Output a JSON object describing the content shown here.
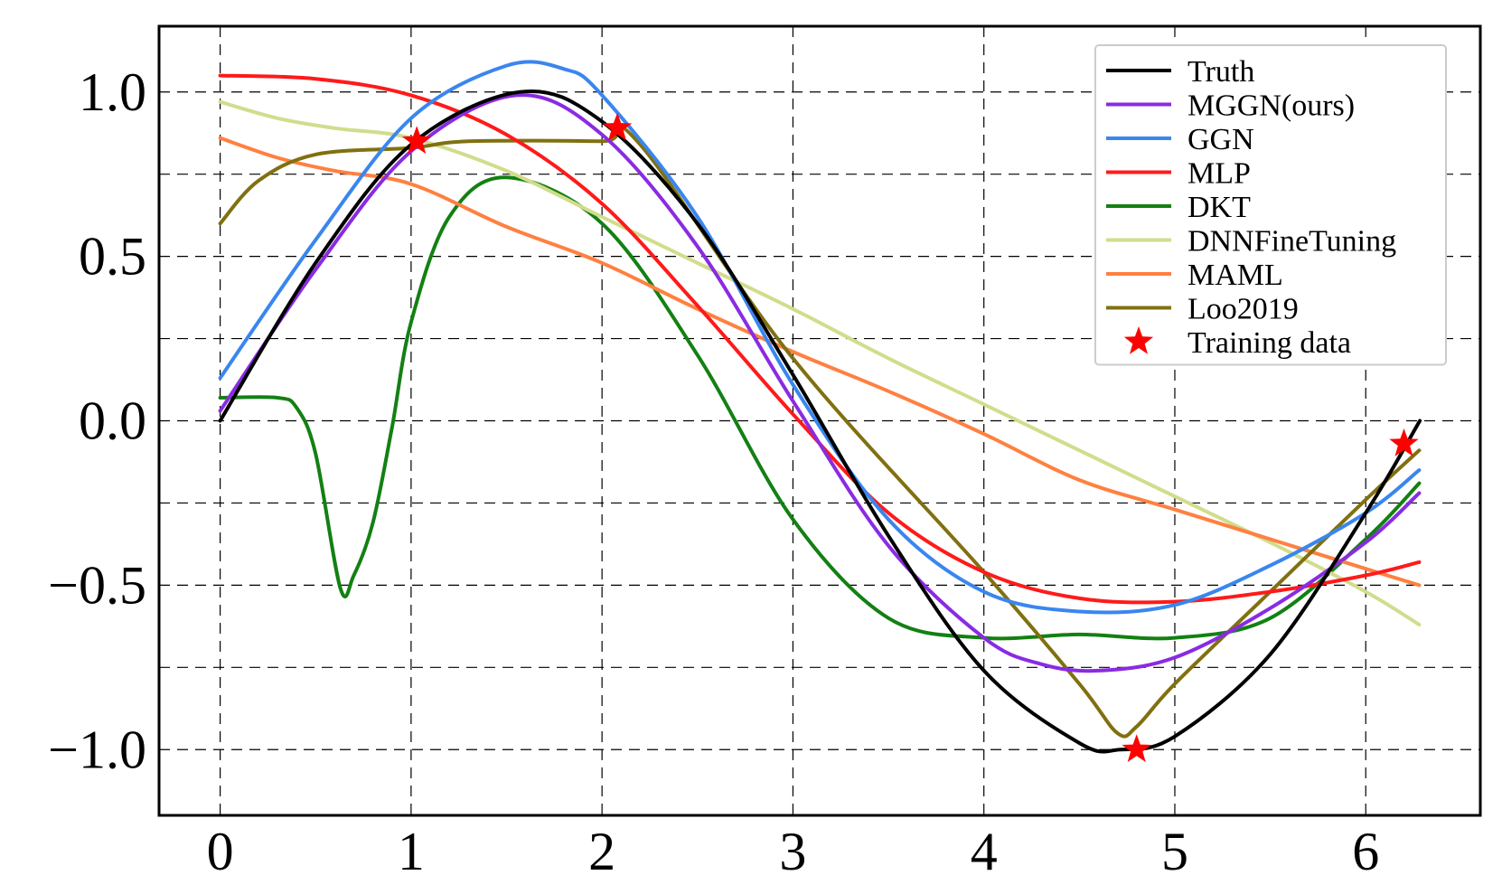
{
  "chart_data": {
    "type": "line",
    "title": "",
    "xlabel": "",
    "ylabel": "",
    "xlim": [
      -0.32,
      6.6
    ],
    "ylim": [
      -1.2,
      1.2
    ],
    "grid": true,
    "legend_position": "top-right",
    "x_ticks": [
      0,
      1,
      2,
      3,
      4,
      5,
      6
    ],
    "x_tick_labels": [
      "0",
      "1",
      "2",
      "3",
      "4",
      "5",
      "6"
    ],
    "y_ticks": [
      -1.0,
      -0.75,
      -0.5,
      -0.25,
      0.0,
      0.25,
      0.5,
      0.75,
      1.0
    ],
    "y_tick_labels": [
      "−1.0",
      "",
      "−0.5",
      "",
      "0.0",
      "",
      "0.5",
      "",
      "1.0"
    ],
    "series": [
      {
        "name": "Truth",
        "color": "#000000",
        "x": [
          0,
          0.5,
          1.0,
          1.5708,
          2.0,
          2.5,
          3.0,
          3.5,
          4.0,
          4.5,
          4.7124,
          5.0,
          5.5,
          6.0,
          6.2832
        ],
        "y": [
          0.0,
          0.48,
          0.84,
          1.0,
          0.91,
          0.6,
          0.14,
          -0.35,
          -0.76,
          -0.98,
          -1.0,
          -0.96,
          -0.71,
          -0.28,
          0.0
        ]
      },
      {
        "name": "MGGN(ours)",
        "color": "#8a2be2",
        "x": [
          0,
          0.5,
          1.0,
          1.55,
          2.0,
          2.5,
          3.0,
          3.5,
          4.0,
          4.3,
          4.6,
          5.0,
          5.5,
          6.0,
          6.28
        ],
        "y": [
          0.03,
          0.46,
          0.82,
          0.99,
          0.87,
          0.53,
          0.06,
          -0.38,
          -0.66,
          -0.74,
          -0.76,
          -0.72,
          -0.57,
          -0.37,
          -0.22
        ]
      },
      {
        "name": "GGN",
        "color": "#3a86ef",
        "x": [
          0,
          0.5,
          1.0,
          1.5,
          1.8,
          2.0,
          2.5,
          3.0,
          3.5,
          4.0,
          4.5,
          5.0,
          5.5,
          6.0,
          6.28
        ],
        "y": [
          0.13,
          0.55,
          0.92,
          1.08,
          1.07,
          0.99,
          0.62,
          0.11,
          -0.3,
          -0.52,
          -0.58,
          -0.56,
          -0.44,
          -0.28,
          -0.15
        ]
      },
      {
        "name": "MLP",
        "color": "#ff1a1a",
        "x": [
          0,
          0.5,
          1.0,
          1.5,
          2.0,
          2.5,
          3.0,
          3.5,
          4.0,
          4.5,
          5.0,
          5.5,
          6.0,
          6.28
        ],
        "y": [
          1.05,
          1.04,
          0.99,
          0.87,
          0.66,
          0.35,
          0.02,
          -0.28,
          -0.46,
          -0.54,
          -0.55,
          -0.52,
          -0.47,
          -0.43
        ]
      },
      {
        "name": "DKT",
        "color": "#138013",
        "x": [
          0,
          0.3,
          0.4,
          0.5,
          0.63,
          0.7,
          0.8,
          0.9,
          1.0,
          1.2,
          1.5,
          2.0,
          2.5,
          3.0,
          3.5,
          4.0,
          4.5,
          5.0,
          5.5,
          6.0,
          6.28
        ],
        "y": [
          0.07,
          0.07,
          0.04,
          -0.1,
          -0.51,
          -0.47,
          -0.31,
          -0.02,
          0.3,
          0.62,
          0.74,
          0.6,
          0.2,
          -0.3,
          -0.6,
          -0.66,
          -0.65,
          -0.66,
          -0.6,
          -0.36,
          -0.19
        ]
      },
      {
        "name": "DNNFineTuning",
        "color": "#d2dc8c",
        "x": [
          0,
          0.3,
          0.6,
          1.0,
          1.5,
          2.0,
          2.5,
          3.0,
          3.5,
          4.0,
          4.5,
          5.0,
          5.5,
          6.0,
          6.28
        ],
        "y": [
          0.97,
          0.92,
          0.89,
          0.86,
          0.76,
          0.62,
          0.48,
          0.34,
          0.19,
          0.05,
          -0.09,
          -0.23,
          -0.37,
          -0.52,
          -0.62
        ]
      },
      {
        "name": "MAML",
        "color": "#ff8040",
        "x": [
          0,
          0.3,
          0.6,
          1.0,
          1.5,
          2.0,
          2.5,
          3.0,
          3.5,
          4.0,
          4.5,
          5.0,
          5.5,
          6.0,
          6.28
        ],
        "y": [
          0.86,
          0.8,
          0.76,
          0.72,
          0.59,
          0.48,
          0.34,
          0.21,
          0.09,
          -0.04,
          -0.18,
          -0.27,
          -0.36,
          -0.45,
          -0.5
        ]
      },
      {
        "name": "Loo2019",
        "color": "#807010",
        "x": [
          0,
          0.2,
          0.5,
          1.0,
          1.3,
          2.0,
          2.2,
          3.0,
          4.0,
          4.5,
          4.7,
          4.8,
          5.0,
          5.5,
          6.0,
          6.28
        ],
        "y": [
          0.6,
          0.73,
          0.81,
          0.83,
          0.85,
          0.85,
          0.84,
          0.19,
          -0.46,
          -0.8,
          -0.95,
          -0.93,
          -0.8,
          -0.52,
          -0.24,
          -0.09
        ]
      }
    ],
    "training_data": {
      "name": "Training data",
      "color": "#ff0000",
      "marker": "star",
      "x": [
        1.03,
        2.08,
        4.8,
        6.2
      ],
      "y": [
        0.85,
        0.89,
        -1.0,
        -0.07
      ]
    }
  }
}
